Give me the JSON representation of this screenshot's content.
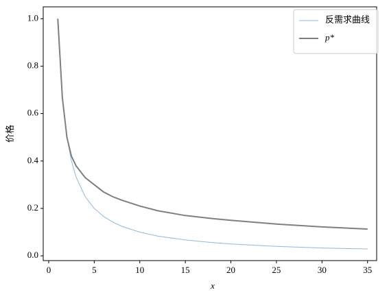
{
  "chart_data": {
    "type": "line",
    "x_label": "x",
    "y_label": "价格",
    "x": [
      1,
      1.5,
      2,
      2.5,
      3,
      4,
      5,
      6,
      7,
      8,
      10,
      12,
      15,
      18,
      20,
      25,
      30,
      35
    ],
    "series": [
      {
        "name": "反需求曲线",
        "color": "#8fb9dc",
        "values": [
          1,
          0.667,
          0.5,
          0.4,
          0.333,
          0.25,
          0.2,
          0.167,
          0.143,
          0.125,
          0.1,
          0.083,
          0.067,
          0.056,
          0.05,
          0.04,
          0.033,
          0.029
        ]
      },
      {
        "name": "p*",
        "color": "#7f7f7f",
        "values": [
          1,
          0.667,
          0.5,
          0.42,
          0.38,
          0.33,
          0.3,
          0.27,
          0.25,
          0.235,
          0.21,
          0.19,
          0.17,
          0.157,
          0.15,
          0.134,
          0.122,
          0.113
        ]
      }
    ],
    "xlim": [
      -0.6,
      36.0
    ],
    "xticks": [
      0,
      5,
      10,
      15,
      20,
      25,
      30,
      35
    ],
    "ylim": [
      -0.02,
      1.05
    ],
    "yticks": [
      {
        "value": 0,
        "label": "0.0"
      },
      0.2,
      0.4,
      0.6,
      0.8,
      {
        "value": 1,
        "label": "1.0"
      }
    ],
    "legend": "upper right"
  }
}
